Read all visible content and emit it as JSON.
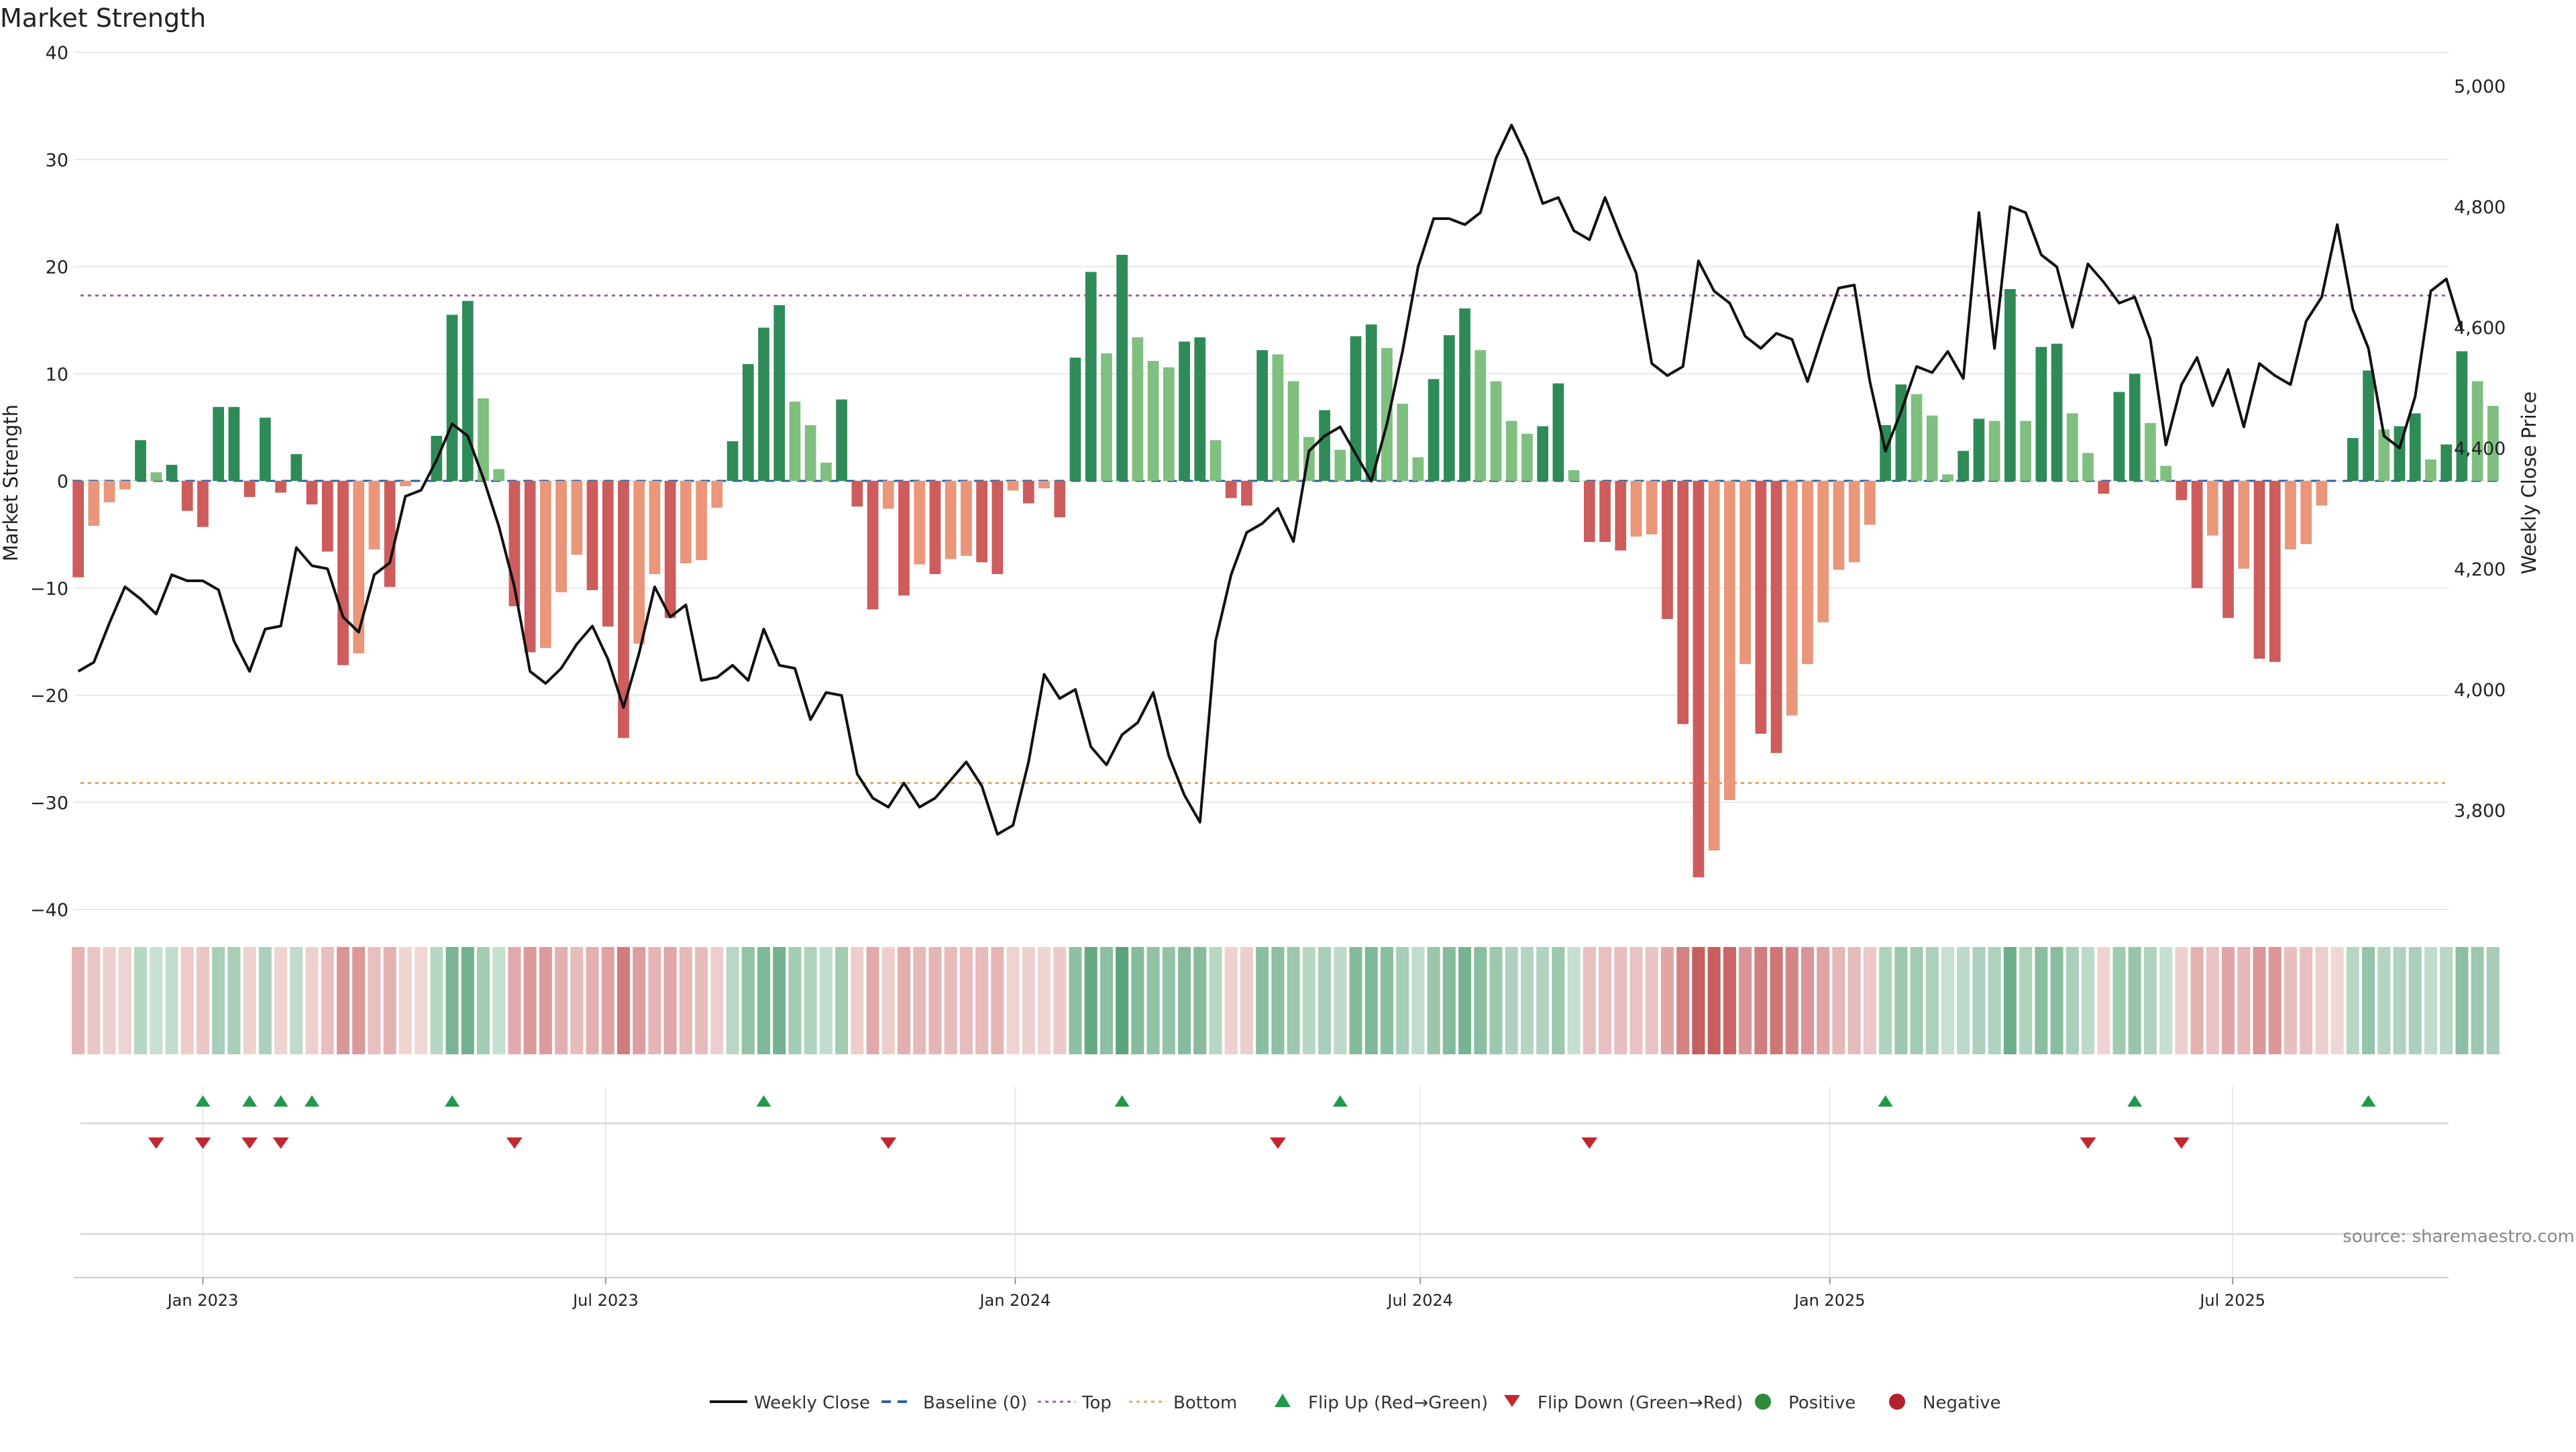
{
  "chart_data": {
    "type": "bar",
    "title": "Market Strength",
    "ylabel": "Market Strength",
    "y2label": "Weekly Close Price",
    "ylim": [
      -40,
      40
    ],
    "y2lim": [
      3680,
      5055
    ],
    "xlim": [
      "2022-11-04",
      "2025-10-06"
    ],
    "y_ticks": [
      "−40",
      "−30",
      "−20",
      "−10",
      "0",
      "10",
      "20",
      "30",
      "40"
    ],
    "y_tick_values": [
      -40,
      -30,
      -20,
      -10,
      0,
      10,
      20,
      30,
      40
    ],
    "y2_ticks": [
      "3,800",
      "4,000",
      "4,200",
      "4,400",
      "4,600",
      "4,800",
      "5,000"
    ],
    "y2_tick_values": [
      3800,
      4000,
      4200,
      4400,
      4600,
      4800,
      5000
    ],
    "x_ticks": [
      "Jan 2023",
      "Jul 2023",
      "Jan 2024",
      "Jul 2024",
      "Jan 2025",
      "Jul 2025"
    ],
    "x_tick_dates": [
      "2023-01-01",
      "2023-07-01",
      "2024-01-01",
      "2024-07-01",
      "2025-01-01",
      "2025-07-01"
    ],
    "top_line": 17.3,
    "bottom_line": -28.2,
    "grid": true,
    "legend_position": "bottom-center",
    "start_date": "2022-11-06",
    "strength": [
      -9,
      -4.2,
      -2,
      -0.8,
      3.8,
      0.8,
      1.5,
      -2.8,
      -4.3,
      6.9,
      6.9,
      -1.5,
      5.9,
      -1.1,
      2.5,
      -2.2,
      -6.6,
      -17.2,
      -16.1,
      -6.4,
      -9.9,
      -0.5,
      0,
      4.2,
      15.5,
      16.8,
      7.7,
      1.1,
      -11.7,
      -16,
      -15.6,
      -10.4,
      -6.9,
      -10.2,
      -13.6,
      -24,
      -15.2,
      -8.7,
      -12.8,
      -7.7,
      -7.4,
      -2.5,
      3.7,
      10.9,
      14.3,
      16.4,
      7.4,
      5.2,
      1.7,
      7.6,
      -2.4,
      -12,
      -2.6,
      -10.7,
      -7.8,
      -8.7,
      -7.3,
      -7,
      -7.6,
      -8.7,
      -0.9,
      -2.1,
      -0.7,
      -3.4,
      11.5,
      19.5,
      11.9,
      21.1,
      13.4,
      11.2,
      10.6,
      13,
      13.4,
      3.8,
      -1.6,
      -2.3,
      12.2,
      11.8,
      9.3,
      4.1,
      6.6,
      2.9,
      13.5,
      14.6,
      12.4,
      7.2,
      2.2,
      9.5,
      13.6,
      16.1,
      12.2,
      9.3,
      5.6,
      4.4,
      5.1,
      9.1,
      1,
      -5.7,
      -5.7,
      -6.5,
      -5.2,
      -5,
      -12.9,
      -22.7,
      -37,
      -34.5,
      -29.8,
      -17.1,
      -23.6,
      -25.4,
      -21.9,
      -17.1,
      -13.2,
      -8.3,
      -7.6,
      -4.1,
      5.2,
      9,
      8.1,
      6.1,
      0.6,
      2.8,
      5.8,
      5.6,
      17.9,
      5.6,
      12.5,
      12.8,
      6.3,
      2.6,
      -1.2,
      8.3,
      10,
      5.4,
      1.4,
      -1.8,
      -10,
      -5.1,
      -12.8,
      -8.2,
      -16.6,
      -16.9,
      -6.4,
      -5.9,
      -2.3,
      0,
      4,
      10.3,
      4.8,
      5.1,
      6.3,
      2,
      3.4,
      12.1,
      9.3,
      7
    ],
    "close": [
      4030,
      4045,
      4110,
      4170,
      4150,
      4125,
      4190,
      4180,
      4180,
      4165,
      4080,
      4030,
      4100,
      4105,
      4235,
      4205,
      4200,
      4120,
      4095,
      4190,
      4210,
      4320,
      4330,
      4380,
      4440,
      4420,
      4350,
      4270,
      4170,
      4030,
      4010,
      4035,
      4075,
      4105,
      4050,
      3970,
      4060,
      4170,
      4120,
      4140,
      4015,
      4020,
      4040,
      4015,
      4100,
      4040,
      4035,
      3950,
      3995,
      3990,
      3860,
      3820,
      3805,
      3845,
      3805,
      3820,
      3850,
      3880,
      3840,
      3760,
      3775,
      3880,
      4025,
      3985,
      4000,
      3905,
      3875,
      3925,
      3945,
      3995,
      3890,
      3825,
      3780,
      4080,
      4190,
      4260,
      4275,
      4300,
      4245,
      4395,
      4420,
      4435,
      4390,
      4345,
      4440,
      4560,
      4700,
      4780,
      4780,
      4770,
      4790,
      4880,
      4935,
      4880,
      4805,
      4815,
      4760,
      4745,
      4815,
      4750,
      4690,
      4540,
      4520,
      4535,
      4710,
      4660,
      4640,
      4585,
      4565,
      4590,
      4580,
      4510,
      4590,
      4665,
      4670,
      4510,
      4395,
      4460,
      4535,
      4525,
      4560,
      4515,
      4790,
      4565,
      4800,
      4790,
      4720,
      4700,
      4600,
      4705,
      4675,
      4640,
      4650,
      4580,
      4405,
      4505,
      4550,
      4470,
      4530,
      4435,
      4540,
      4520,
      4505,
      4610,
      4650,
      4770,
      4630,
      4565,
      4420,
      4400,
      4485,
      4660,
      4680,
      4595
    ],
    "heatstrip": "color-coded strength per week (green positive, red negative)",
    "flip_up_dates": [
      "2023-01-01",
      "2023-01-22",
      "2023-02-05",
      "2023-02-19",
      "2023-04-23",
      "2023-09-10",
      "2024-02-18",
      "2024-05-26",
      "2025-01-26",
      "2025-05-18",
      "2025-08-31"
    ],
    "flip_down_dates": [
      "2022-12-11",
      "2023-01-01",
      "2023-01-22",
      "2023-02-05",
      "2023-05-21",
      "2023-11-05",
      "2024-04-28",
      "2024-09-15",
      "2025-04-27",
      "2025-06-08"
    ],
    "legend": [
      {
        "label": "Weekly Close",
        "color": "#111111"
      },
      {
        "label": "Baseline (0)",
        "color": "#2f5f9e"
      },
      {
        "label": "Top",
        "color": "#a060a0"
      },
      {
        "label": "Bottom",
        "color": "#e0a860"
      },
      {
        "label": "Flip Up (Red→Green)",
        "color": "#1f9a4a"
      },
      {
        "label": "Flip Down (Green→Red)",
        "color": "#c0282d"
      },
      {
        "label": "Positive",
        "color": "#2e8b3a"
      },
      {
        "label": "Negative",
        "color": "#b32229"
      }
    ],
    "source_text": "source: sharemaestro.com"
  },
  "colors": {
    "pos_strong": "#2e8b57",
    "pos_weak": "#7fbf7f",
    "neg_strong": "#cd5c5c",
    "neg_weak": "#e9967a",
    "grid": "#e8e8e8",
    "axis": "#cccccc"
  }
}
